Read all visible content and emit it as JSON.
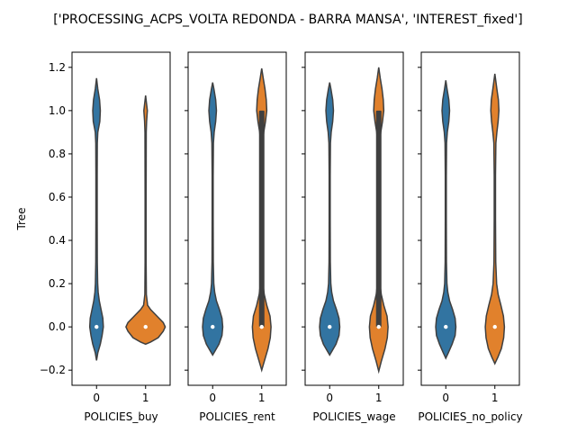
{
  "chart_data": {
    "type": "violin",
    "title": "['PROCESSING_ACPS_VOLTA REDONDA - BARRA MANSA', 'INTEREST_fixed']",
    "ylabel": "Tree",
    "ylim": [
      -0.27,
      1.27
    ],
    "yticks": [
      -0.2,
      0.0,
      0.2,
      0.4,
      0.6,
      0.8,
      1.0,
      1.2
    ],
    "ytick_labels": [
      "−0.2",
      "0.0",
      "0.2",
      "0.4",
      "0.6",
      "0.8",
      "1.0",
      "1.2"
    ],
    "categories": [
      "0",
      "1"
    ],
    "colors": {
      "0": "#3274a1",
      "1": "#e1812c"
    },
    "panels": [
      {
        "xlabel": "POLICIES_buy",
        "violins": [
          {
            "category": "0",
            "median": 0.0,
            "q1": 0.0,
            "q3": 0.0,
            "profile": [
              [
                -0.155,
                0
              ],
              [
                -0.12,
                0.05
              ],
              [
                -0.08,
                0.15
              ],
              [
                -0.04,
                0.22
              ],
              [
                0.0,
                0.27
              ],
              [
                0.04,
                0.25
              ],
              [
                0.08,
                0.18
              ],
              [
                0.12,
                0.11
              ],
              [
                0.16,
                0.065
              ],
              [
                0.2,
                0.045
              ],
              [
                0.3,
                0.03
              ],
              [
                0.5,
                0.025
              ],
              [
                0.7,
                0.025
              ],
              [
                0.85,
                0.03
              ],
              [
                0.9,
                0.05
              ],
              [
                0.95,
                0.13
              ],
              [
                1.0,
                0.15
              ],
              [
                1.05,
                0.12
              ],
              [
                1.1,
                0.05
              ],
              [
                1.15,
                0
              ]
            ]
          },
          {
            "category": "1",
            "median": 0.0,
            "q1": 0.0,
            "q3": 0.0,
            "profile": [
              [
                -0.08,
                0
              ],
              [
                -0.07,
                0.2
              ],
              [
                -0.05,
                0.5
              ],
              [
                -0.02,
                0.7
              ],
              [
                0.0,
                0.78
              ],
              [
                0.02,
                0.7
              ],
              [
                0.05,
                0.45
              ],
              [
                0.08,
                0.2
              ],
              [
                0.1,
                0.08
              ],
              [
                0.15,
                0.03
              ],
              [
                0.3,
                0.02
              ],
              [
                0.6,
                0.02
              ],
              [
                0.9,
                0.025
              ],
              [
                0.95,
                0.04
              ],
              [
                1.0,
                0.07
              ],
              [
                1.03,
                0.04
              ],
              [
                1.07,
                0
              ]
            ]
          }
        ]
      },
      {
        "xlabel": "POLICIES_rent",
        "violins": [
          {
            "category": "0",
            "median": 0.0,
            "q1": 0.0,
            "q3": 0.0,
            "profile": [
              [
                -0.13,
                0
              ],
              [
                -0.11,
                0.1
              ],
              [
                -0.08,
                0.25
              ],
              [
                -0.04,
                0.37
              ],
              [
                0.0,
                0.4
              ],
              [
                0.04,
                0.37
              ],
              [
                0.08,
                0.27
              ],
              [
                0.12,
                0.15
              ],
              [
                0.16,
                0.08
              ],
              [
                0.2,
                0.045
              ],
              [
                0.3,
                0.025
              ],
              [
                0.5,
                0.02
              ],
              [
                0.7,
                0.02
              ],
              [
                0.85,
                0.03
              ],
              [
                0.9,
                0.06
              ],
              [
                0.95,
                0.12
              ],
              [
                1.0,
                0.15
              ],
              [
                1.05,
                0.12
              ],
              [
                1.1,
                0.05
              ],
              [
                1.13,
                0
              ]
            ]
          },
          {
            "category": "1",
            "median": 0.0,
            "q1": 0.0,
            "q3": 1.0,
            "profile": [
              [
                -0.2,
                0
              ],
              [
                -0.16,
                0.1
              ],
              [
                -0.1,
                0.25
              ],
              [
                -0.05,
                0.34
              ],
              [
                0.0,
                0.37
              ],
              [
                0.05,
                0.33
              ],
              [
                0.1,
                0.2
              ],
              [
                0.15,
                0.1
              ],
              [
                0.2,
                0.05
              ],
              [
                0.3,
                0.035
              ],
              [
                0.5,
                0.03
              ],
              [
                0.7,
                0.03
              ],
              [
                0.85,
                0.04
              ],
              [
                0.9,
                0.08
              ],
              [
                0.95,
                0.15
              ],
              [
                1.0,
                0.2
              ],
              [
                1.05,
                0.18
              ],
              [
                1.1,
                0.13
              ],
              [
                1.15,
                0.06
              ],
              [
                1.195,
                0
              ]
            ]
          }
        ]
      },
      {
        "xlabel": "POLICIES_wage",
        "violins": [
          {
            "category": "0",
            "median": 0.0,
            "q1": 0.0,
            "q3": 0.0,
            "profile": [
              [
                -0.13,
                0
              ],
              [
                -0.11,
                0.1
              ],
              [
                -0.08,
                0.25
              ],
              [
                -0.04,
                0.37
              ],
              [
                0.0,
                0.4
              ],
              [
                0.04,
                0.37
              ],
              [
                0.08,
                0.27
              ],
              [
                0.12,
                0.15
              ],
              [
                0.16,
                0.08
              ],
              [
                0.2,
                0.045
              ],
              [
                0.3,
                0.025
              ],
              [
                0.5,
                0.02
              ],
              [
                0.7,
                0.02
              ],
              [
                0.85,
                0.03
              ],
              [
                0.9,
                0.06
              ],
              [
                0.95,
                0.12
              ],
              [
                1.0,
                0.15
              ],
              [
                1.05,
                0.12
              ],
              [
                1.1,
                0.05
              ],
              [
                1.13,
                0
              ]
            ]
          },
          {
            "category": "1",
            "median": 0.0,
            "q1": 0.0,
            "q3": 1.0,
            "profile": [
              [
                -0.205,
                0
              ],
              [
                -0.16,
                0.1
              ],
              [
                -0.1,
                0.25
              ],
              [
                -0.05,
                0.34
              ],
              [
                0.0,
                0.37
              ],
              [
                0.05,
                0.33
              ],
              [
                0.1,
                0.2
              ],
              [
                0.15,
                0.1
              ],
              [
                0.2,
                0.05
              ],
              [
                0.3,
                0.035
              ],
              [
                0.5,
                0.03
              ],
              [
                0.7,
                0.03
              ],
              [
                0.85,
                0.04
              ],
              [
                0.9,
                0.08
              ],
              [
                0.95,
                0.15
              ],
              [
                1.0,
                0.2
              ],
              [
                1.05,
                0.18
              ],
              [
                1.1,
                0.13
              ],
              [
                1.15,
                0.06
              ],
              [
                1.2,
                0
              ]
            ]
          }
        ]
      },
      {
        "xlabel": "POLICIES_no_policy",
        "violins": [
          {
            "category": "0",
            "median": 0.0,
            "q1": 0.0,
            "q3": 0.0,
            "profile": [
              [
                -0.145,
                0
              ],
              [
                -0.12,
                0.1
              ],
              [
                -0.08,
                0.25
              ],
              [
                -0.04,
                0.37
              ],
              [
                0.0,
                0.4
              ],
              [
                0.04,
                0.37
              ],
              [
                0.08,
                0.27
              ],
              [
                0.12,
                0.15
              ],
              [
                0.16,
                0.08
              ],
              [
                0.2,
                0.045
              ],
              [
                0.3,
                0.025
              ],
              [
                0.5,
                0.02
              ],
              [
                0.7,
                0.02
              ],
              [
                0.85,
                0.03
              ],
              [
                0.9,
                0.06
              ],
              [
                0.95,
                0.12
              ],
              [
                1.0,
                0.15
              ],
              [
                1.05,
                0.12
              ],
              [
                1.1,
                0.05
              ],
              [
                1.14,
                0
              ]
            ]
          },
          {
            "category": "1",
            "median": 0.0,
            "q1": 0.0,
            "q3": 0.0,
            "profile": [
              [
                -0.17,
                0
              ],
              [
                -0.14,
                0.12
              ],
              [
                -0.1,
                0.26
              ],
              [
                -0.05,
                0.35
              ],
              [
                0.0,
                0.38
              ],
              [
                0.05,
                0.34
              ],
              [
                0.1,
                0.24
              ],
              [
                0.15,
                0.13
              ],
              [
                0.2,
                0.07
              ],
              [
                0.3,
                0.035
              ],
              [
                0.5,
                0.025
              ],
              [
                0.7,
                0.025
              ],
              [
                0.85,
                0.04
              ],
              [
                0.9,
                0.08
              ],
              [
                0.95,
                0.13
              ],
              [
                1.0,
                0.16
              ],
              [
                1.05,
                0.14
              ],
              [
                1.1,
                0.08
              ],
              [
                1.17,
                0
              ]
            ]
          }
        ]
      }
    ]
  }
}
